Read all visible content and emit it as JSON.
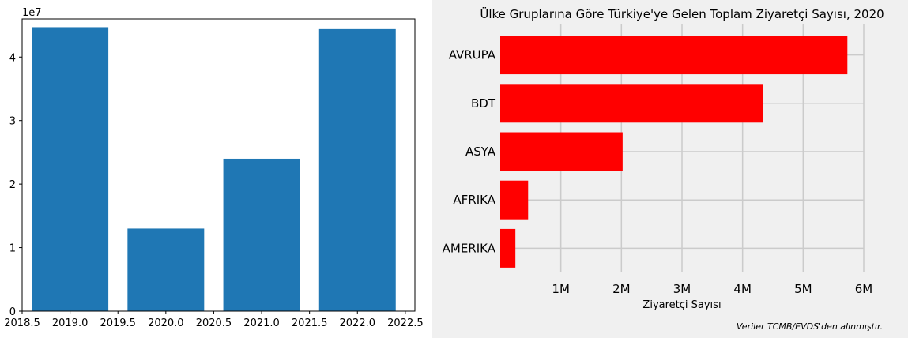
{
  "chart_data": [
    {
      "type": "bar",
      "title": "",
      "xlabel": "",
      "ylabel": "",
      "y_multiplier_label": "1e7",
      "x": [
        2019,
        2020,
        2021,
        2022
      ],
      "values": [
        44700000,
        13000000,
        24000000,
        44400000
      ],
      "bar_width": 0.8,
      "xlim": [
        2018.5,
        2022.6
      ],
      "ylim": [
        0,
        46000000
      ],
      "x_ticks": [
        2018.5,
        2019.0,
        2019.5,
        2020.0,
        2020.5,
        2021.0,
        2021.5,
        2022.0,
        2022.5
      ],
      "x_tick_labels": [
        "2018.5",
        "2019.0",
        "2019.5",
        "2020.0",
        "2020.5",
        "2021.0",
        "2021.5",
        "2022.0",
        "2022.5"
      ],
      "y_ticks": [
        0,
        10000000,
        20000000,
        30000000,
        40000000
      ],
      "y_tick_labels": [
        "0",
        "1",
        "2",
        "3",
        "4"
      ],
      "grid": false,
      "color": "#1f77b4"
    },
    {
      "type": "bar",
      "orientation": "horizontal",
      "title": "Ülke Gruplarına Göre Türkiye'ye Gelen Toplam Ziyaretçi Sayısı, 2020",
      "xlabel": "Ziyaretçi Sayısı",
      "ylabel": "",
      "categories": [
        "AVRUPA",
        "BDT",
        "ASYA",
        "AFRIKA",
        "AMERIKA"
      ],
      "values": [
        5730000,
        4340000,
        2020000,
        460000,
        250000
      ],
      "xlim": [
        0,
        6000000
      ],
      "x_ticks": [
        1000000,
        2000000,
        3000000,
        4000000,
        5000000,
        6000000
      ],
      "x_tick_labels": [
        "1M",
        "2M",
        "3M",
        "4M",
        "5M",
        "6M"
      ],
      "grid": true,
      "color": "#ff0000",
      "note": "Veriler TCMB/EVDS'den alınmıştır."
    }
  ]
}
